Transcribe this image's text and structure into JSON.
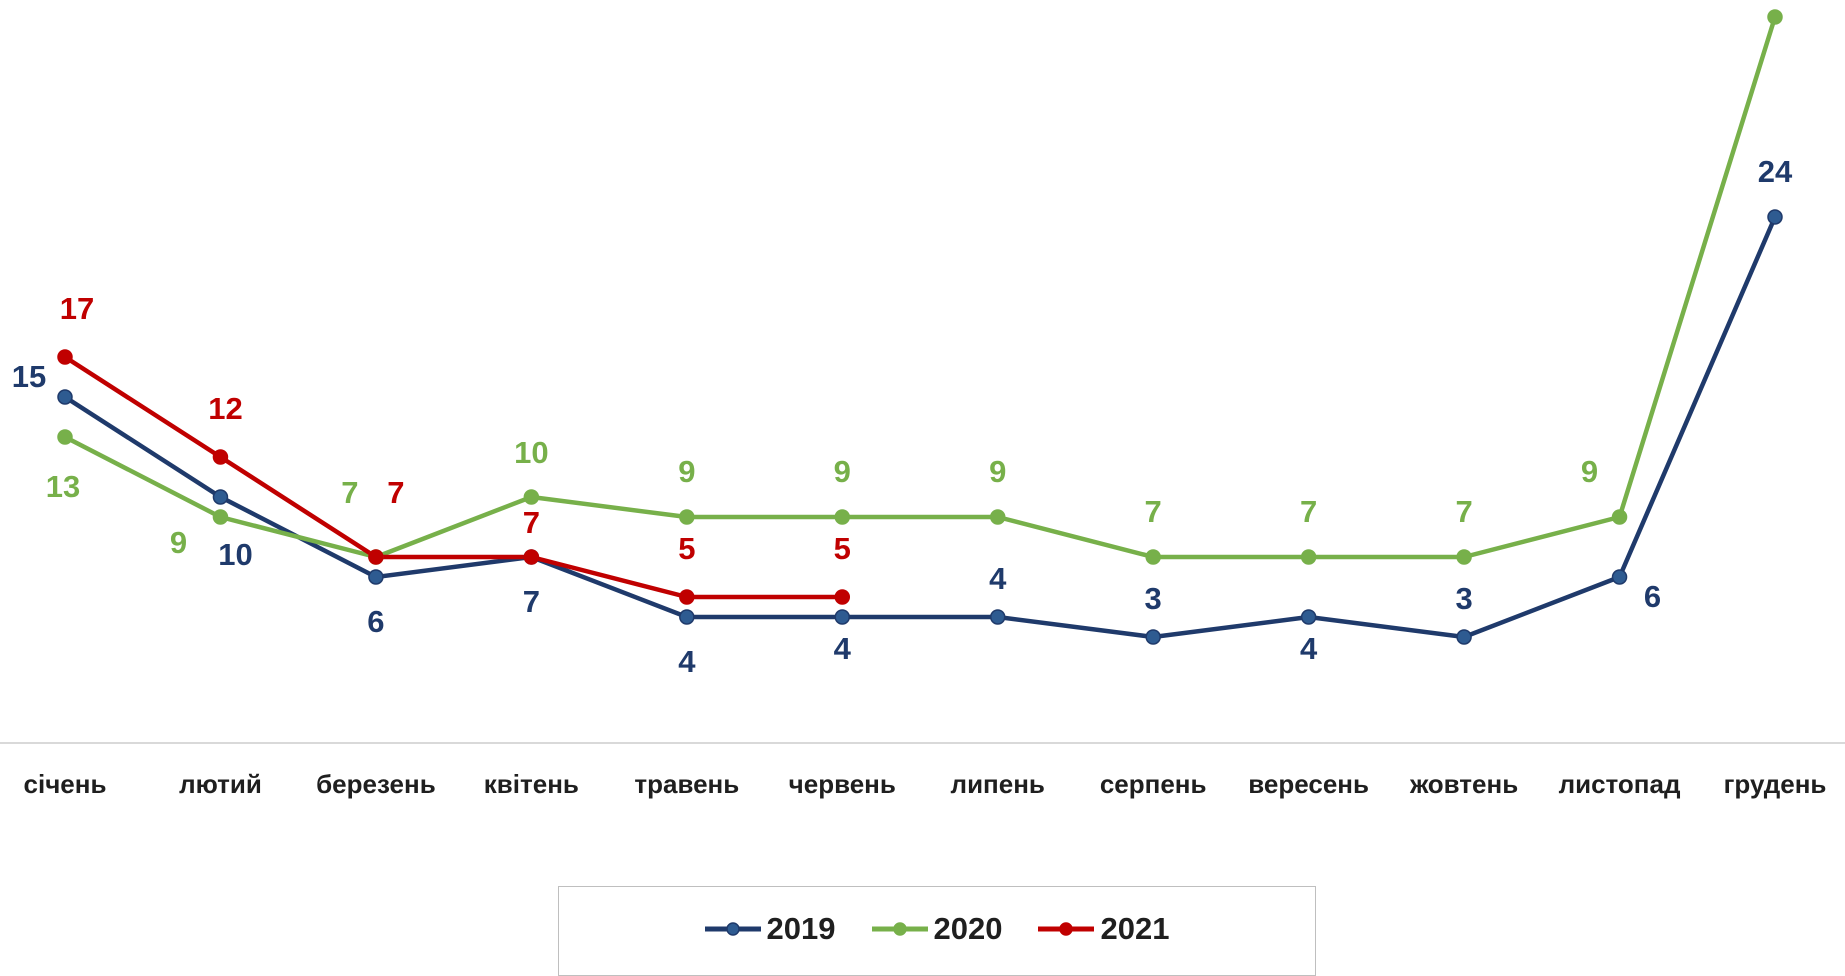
{
  "chart_data": {
    "type": "line",
    "categories": [
      "січень",
      "лютий",
      "березень",
      "квітень",
      "травень",
      "червень",
      "липень",
      "серпень",
      "вересень",
      "жовтень",
      "листопад",
      "грудень"
    ],
    "series": [
      {
        "name": "2019",
        "color": "#1f3a6b",
        "values": [
          15,
          10,
          6,
          7,
          4,
          4,
          4,
          3,
          4,
          3,
          6,
          24
        ]
      },
      {
        "name": "2020",
        "color": "#77b04a",
        "values": [
          13,
          9,
          7,
          10,
          9,
          9,
          9,
          7,
          7,
          7,
          9,
          34
        ]
      },
      {
        "name": "2021",
        "color": "#c00000",
        "values": [
          17,
          12,
          7,
          7,
          5,
          5,
          null,
          null,
          null,
          null,
          null,
          null
        ]
      }
    ],
    "ylim": [
      0,
      37
    ],
    "grid": false,
    "legend_position": "bottom"
  }
}
